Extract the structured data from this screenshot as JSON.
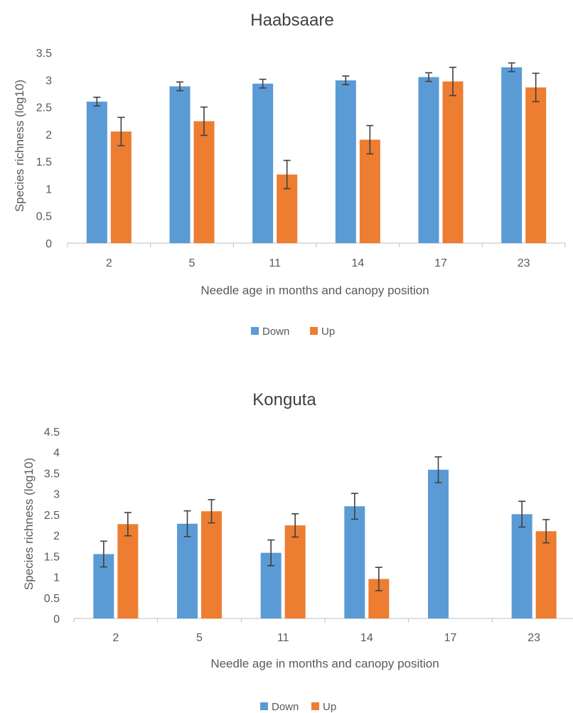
{
  "colors": {
    "down": "#5B9BD5",
    "up": "#ED7D31",
    "axis": "#BFBFBF",
    "error": "#404040"
  },
  "chart_data": [
    {
      "type": "bar",
      "title": "Haabsaare",
      "xlabel": "Needle age in months and canopy position",
      "ylabel": "Species richness (log10)",
      "categories": [
        "2",
        "5",
        "11",
        "14",
        "17",
        "23"
      ],
      "ylim": [
        0,
        3.5
      ],
      "yticks": [
        "0",
        "0.5",
        "1",
        "1.5",
        "2",
        "2.5",
        "3",
        "3.5"
      ],
      "series": [
        {
          "name": "Down",
          "values": [
            2.6,
            2.88,
            2.93,
            2.99,
            3.05,
            3.23
          ],
          "errors": [
            0.08,
            0.08,
            0.08,
            0.08,
            0.08,
            0.08
          ]
        },
        {
          "name": "Up",
          "values": [
            2.05,
            2.24,
            1.26,
            1.9,
            2.97,
            2.86
          ],
          "errors": [
            0.26,
            0.26,
            0.26,
            0.26,
            0.26,
            0.26
          ]
        }
      ],
      "legend": "bottom"
    },
    {
      "type": "bar",
      "title": "Konguta",
      "xlabel": "Needle age in months and canopy position",
      "ylabel": "Species richness (log10)",
      "categories": [
        "2",
        "5",
        "11",
        "14",
        "17",
        "23"
      ],
      "ylim": [
        0,
        4.5
      ],
      "yticks": [
        "0",
        "0.5",
        "1",
        "1.5",
        "2",
        "2.5",
        "3",
        "3.5",
        "4",
        "4.5"
      ],
      "series": [
        {
          "name": "Down",
          "values": [
            1.55,
            2.28,
            1.58,
            2.7,
            3.58,
            2.51
          ],
          "errors": [
            0.31,
            0.31,
            0.31,
            0.31,
            0.31,
            0.31
          ]
        },
        {
          "name": "Up",
          "values": [
            2.27,
            2.58,
            2.24,
            0.95,
            null,
            2.1
          ],
          "errors": [
            0.28,
            0.28,
            0.28,
            0.28,
            null,
            0.28
          ]
        }
      ],
      "legend": "bottom"
    }
  ]
}
